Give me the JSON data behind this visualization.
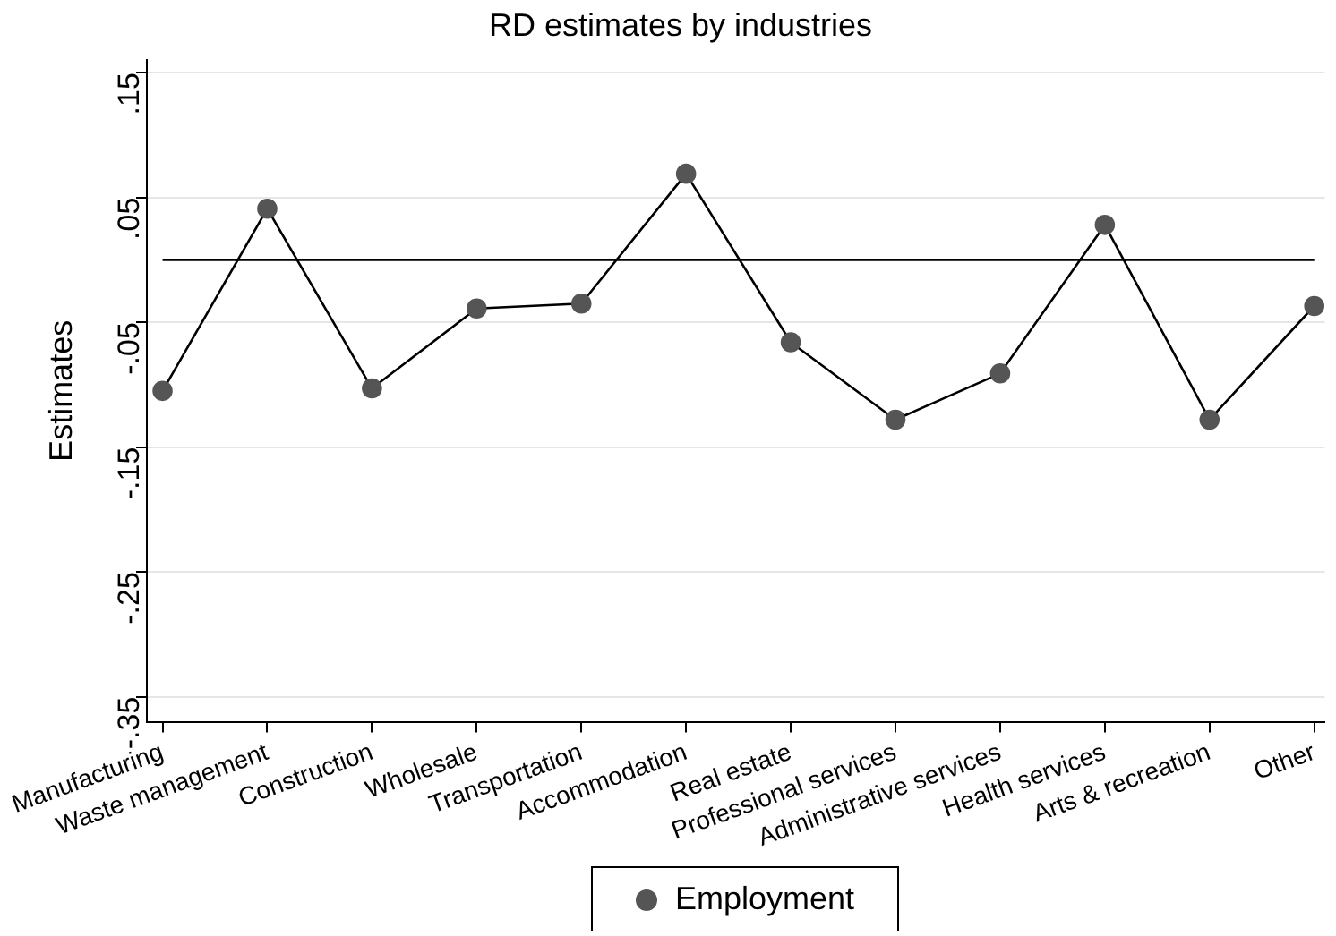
{
  "chart_data": {
    "type": "line",
    "title": "RD estimates by industries",
    "ylabel": "Estimates",
    "categories": [
      "Manufacturing",
      "Waste management",
      "Construction",
      "Wholesale",
      "Transportation",
      "Accommodation",
      "Real estate",
      "Professional services",
      "Administrative services",
      "Health services",
      "Arts & recreation",
      "Other"
    ],
    "series": [
      {
        "name": "Employment",
        "color": "#555555",
        "values": [
          -0.105,
          0.041,
          -0.103,
          -0.039,
          -0.035,
          0.069,
          -0.066,
          -0.128,
          -0.091,
          0.028,
          -0.128,
          -0.037
        ]
      }
    ],
    "ylim": [
      -0.37,
      0.16
    ],
    "yticks": [
      {
        "value": 0.15,
        "label": ".15"
      },
      {
        "value": 0.05,
        "label": ".05"
      },
      {
        "value": -0.05,
        "label": "-.05"
      },
      {
        "value": -0.15,
        "label": "-.15"
      },
      {
        "value": -0.25,
        "label": "-.25"
      },
      {
        "value": -0.35,
        "label": "-.35"
      }
    ],
    "ref_lines": [
      {
        "axis": "y",
        "value": 0,
        "color": "#000000"
      }
    ],
    "grid": "y",
    "legend": "bottom",
    "marker": "circle",
    "line_style": "solid"
  }
}
